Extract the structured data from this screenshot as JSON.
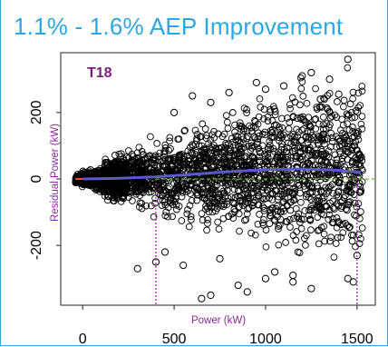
{
  "headline": "1.1% - 1.6% AEP Improvement",
  "chart_data": {
    "type": "scatter",
    "panel_label": "T18",
    "xlabel": "Power (kW)",
    "ylabel": "Residual Power (kW)",
    "xlim": [
      -120,
      1600
    ],
    "ylim": [
      -380,
      380
    ],
    "x_ticks": [
      0,
      500,
      1000,
      1500
    ],
    "y_ticks": [
      -200,
      0,
      200
    ],
    "x_tick_labels": [
      "0",
      "500",
      "1000",
      "1500"
    ],
    "y_tick_labels": [
      "-200",
      "0",
      "200"
    ],
    "reference_line": {
      "y": 0,
      "style": "dashed",
      "color": "#66bb33"
    },
    "vertical_markers": [
      {
        "x": 400,
        "color": "#9933aa"
      },
      {
        "x": 1500,
        "color": "#9933aa"
      }
    ],
    "series": [
      {
        "type": "line",
        "color": "#5a5ac8",
        "x": [
          0,
          200,
          400,
          600,
          800,
          1000,
          1200,
          1400,
          1520
        ],
        "y": [
          0,
          2,
          6,
          14,
          22,
          28,
          30,
          26,
          20
        ]
      },
      {
        "type": "scatter",
        "marker": "open-circle",
        "color": "#000000",
        "x": [
          1200,
          1450,
          1250,
          1100,
          600,
          1300,
          950,
          800,
          1350,
          700,
          500,
          1000,
          1400,
          1480,
          650,
          850,
          1150,
          400,
          300,
          1450,
          900,
          1050,
          750,
          1250,
          550,
          1500,
          1150,
          450,
          1000,
          700
        ],
        "y": [
          310,
          360,
          320,
          280,
          250,
          240,
          290,
          260,
          300,
          230,
          200,
          270,
          255,
          -310,
          -360,
          -320,
          -290,
          -250,
          -270,
          -300,
          -340,
          -280,
          -240,
          -330,
          -260,
          -230,
          -310,
          -220,
          -300,
          -350
        ]
      }
    ]
  }
}
